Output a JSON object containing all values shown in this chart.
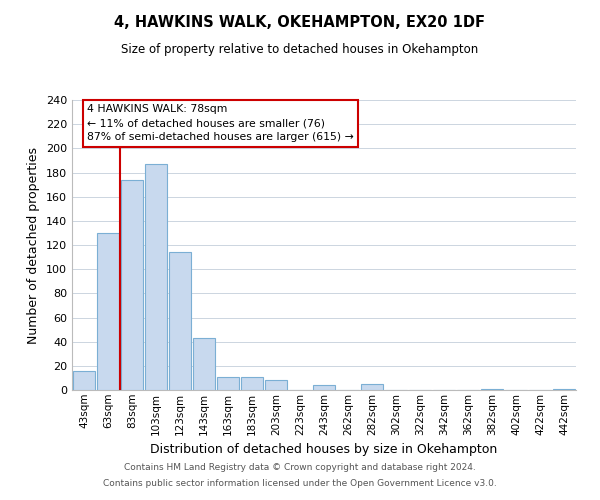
{
  "title": "4, HAWKINS WALK, OKEHAMPTON, EX20 1DF",
  "subtitle": "Size of property relative to detached houses in Okehampton",
  "xlabel": "Distribution of detached houses by size in Okehampton",
  "ylabel": "Number of detached properties",
  "bar_labels": [
    "43sqm",
    "63sqm",
    "83sqm",
    "103sqm",
    "123sqm",
    "143sqm",
    "163sqm",
    "183sqm",
    "203sqm",
    "223sqm",
    "243sqm",
    "262sqm",
    "282sqm",
    "302sqm",
    "322sqm",
    "342sqm",
    "362sqm",
    "382sqm",
    "402sqm",
    "422sqm",
    "442sqm"
  ],
  "bar_values": [
    16,
    130,
    174,
    187,
    114,
    43,
    11,
    11,
    8,
    0,
    4,
    0,
    5,
    0,
    0,
    0,
    0,
    1,
    0,
    0,
    1
  ],
  "bar_color": "#c8d9ee",
  "bar_edge_color": "#7bafd4",
  "vline_x_index": 2,
  "vline_color": "#cc0000",
  "ylim": [
    0,
    240
  ],
  "yticks": [
    0,
    20,
    40,
    60,
    80,
    100,
    120,
    140,
    160,
    180,
    200,
    220,
    240
  ],
  "annotation_title": "4 HAWKINS WALK: 78sqm",
  "annotation_line1": "← 11% of detached houses are smaller (76)",
  "annotation_line2": "87% of semi-detached houses are larger (615) →",
  "annotation_box_color": "#ffffff",
  "annotation_box_edge": "#cc0000",
  "footer1": "Contains HM Land Registry data © Crown copyright and database right 2024.",
  "footer2": "Contains public sector information licensed under the Open Government Licence v3.0.",
  "background_color": "#ffffff",
  "grid_color": "#ccd5e0"
}
